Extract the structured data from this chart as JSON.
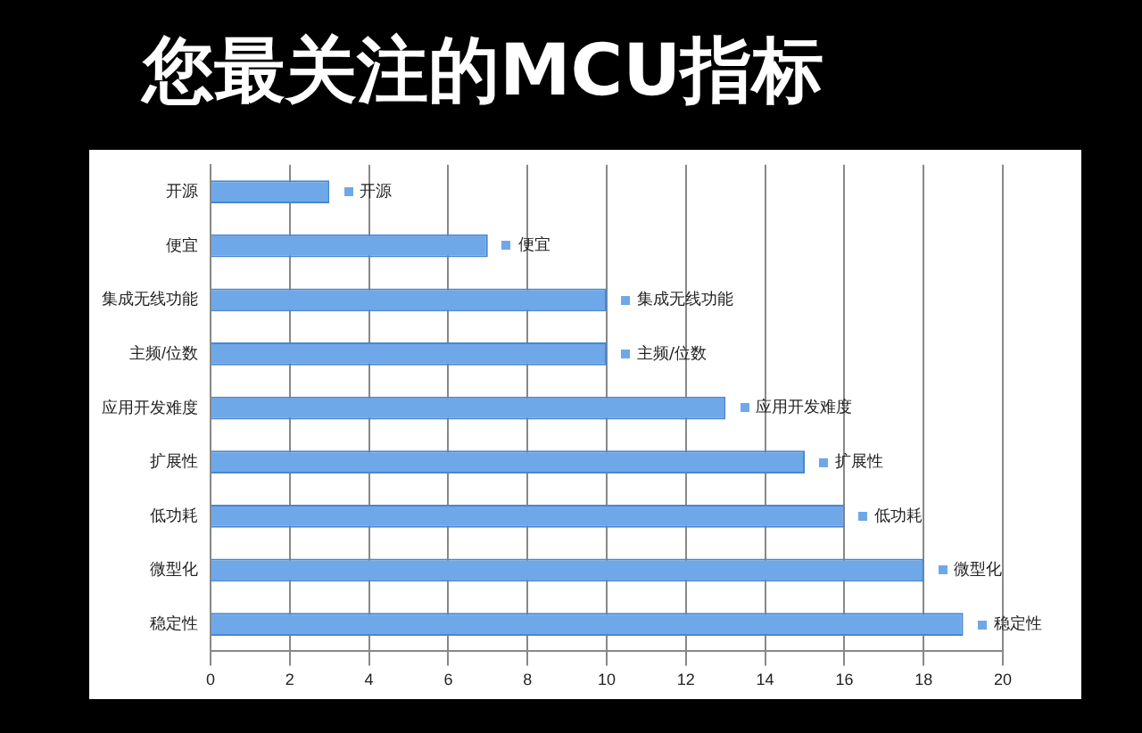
{
  "chart_data": {
    "type": "bar",
    "orientation": "horizontal",
    "title": "您最关注的MCU指标",
    "categories": [
      "开源",
      "便宜",
      "集成无线功能",
      "主频/位数",
      "应用开发难度",
      "扩展性",
      "低功耗",
      "微型化",
      "稳定性"
    ],
    "values": [
      3,
      7,
      10,
      10,
      13,
      15,
      16,
      18,
      19
    ],
    "value_labels": [
      "开源",
      "便宜",
      "集成无线功能",
      "主频/位数",
      "应用开发难度",
      "扩展性",
      "低功耗",
      "微型化",
      "稳定性"
    ],
    "color": "#6fa8e8",
    "xlim": [
      0,
      20
    ],
    "xticks": [
      0,
      2,
      4,
      6,
      8,
      10,
      12,
      14,
      16,
      18,
      20
    ],
    "grid": "x",
    "legend": false
  }
}
